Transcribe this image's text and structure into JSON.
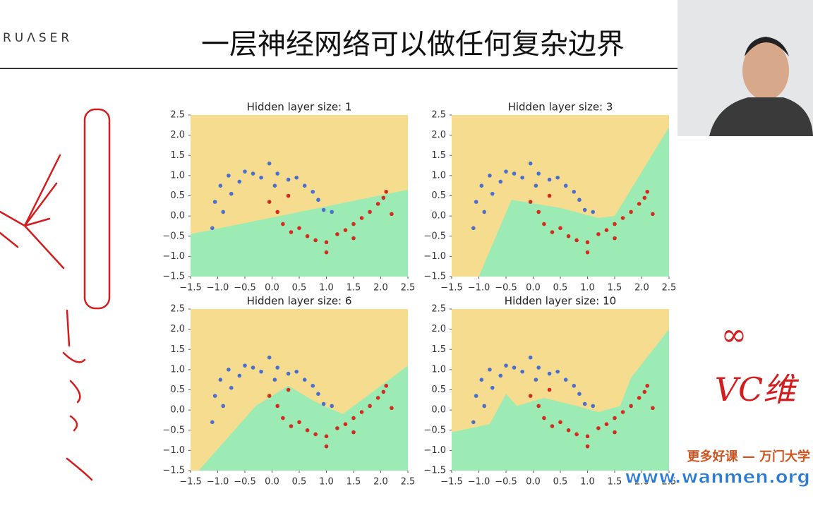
{
  "page": {
    "logo": "RUΛSER",
    "title": "一层神经网络可以做任何复杂边界",
    "note_1": "∞",
    "note_2": "VC维",
    "watermark_1": "更多好课 — 万门大学",
    "watermark_2": "www.wanmen.org"
  },
  "chart_data": [
    {
      "type": "scatter",
      "title": "Hidden layer size: 1",
      "xlim": [
        -1.5,
        2.5
      ],
      "ylim": [
        -1.5,
        2.5
      ],
      "xticks": [
        {
          "value": -1.5,
          "label": "−1.5"
        },
        {
          "value": -1.0,
          "label": "−1.0"
        },
        {
          "value": -0.5,
          "label": "−0.5"
        },
        {
          "value": 0,
          "label": "0.0"
        },
        0.5,
        {
          "value": 1,
          "label": "1.0"
        },
        1.5,
        {
          "value": 2,
          "label": "2.0"
        },
        2.5
      ],
      "yticks": [
        {
          "value": -1.5,
          "label": "−1.5"
        },
        {
          "value": -1.0,
          "label": "−1.0"
        },
        {
          "value": -0.5,
          "label": "−0.5"
        },
        {
          "value": 0,
          "label": "0.0"
        },
        0.5,
        {
          "value": 1,
          "label": "1.0"
        },
        1.5,
        {
          "value": 2,
          "label": "2.0"
        },
        2.5
      ],
      "background": "#f5dc8e",
      "region_color": "#9debb4",
      "boundary": {
        "x": [
          -1.5,
          2.5,
          2.5,
          -1.5
        ],
        "y": [
          -0.45,
          0.65,
          -1.5,
          -1.5
        ]
      },
      "series": [
        {
          "color": "#4a6fd0",
          "x": [
            -1.05,
            -0.95,
            -0.9,
            -0.8,
            -0.75,
            -0.6,
            -0.5,
            -0.35,
            -0.2,
            -0.05,
            0.1,
            0.3,
            0.45,
            0.6,
            0.75,
            0.85,
            0.95,
            1.1,
            -1.1,
            0.05
          ],
          "y": [
            0.35,
            0.75,
            0.1,
            1.0,
            0.55,
            0.85,
            1.1,
            1.05,
            0.95,
            1.3,
            1.05,
            0.9,
            0.95,
            0.75,
            0.6,
            0.4,
            0.15,
            0.1,
            -0.3,
            0.75
          ]
        },
        {
          "color": "#d42b1f",
          "x": [
            -0.05,
            0.1,
            0.2,
            0.35,
            0.5,
            0.65,
            0.8,
            1.0,
            1.0,
            1.2,
            1.35,
            1.5,
            1.65,
            1.8,
            1.95,
            2.05,
            2.1,
            2.2,
            0.3,
            1.5
          ],
          "y": [
            0.35,
            0.1,
            -0.2,
            -0.4,
            -0.3,
            -0.5,
            -0.6,
            -0.65,
            -0.9,
            -0.45,
            -0.35,
            -0.2,
            -0.05,
            0.1,
            0.3,
            0.45,
            0.6,
            0.05,
            0.5,
            -0.55
          ]
        }
      ]
    },
    {
      "type": "scatter",
      "title": "Hidden layer size: 3",
      "xlim": [
        -1.5,
        2.5
      ],
      "ylim": [
        -1.5,
        2.5
      ],
      "xticks": [
        {
          "value": -1.5,
          "label": "−1.5"
        },
        {
          "value": -1.0,
          "label": "−1.0"
        },
        {
          "value": -0.5,
          "label": "−0.5"
        },
        {
          "value": 0,
          "label": "0.0"
        },
        0.5,
        {
          "value": 1,
          "label": "1.0"
        },
        1.5,
        {
          "value": 2,
          "label": "2.0"
        },
        2.5
      ],
      "yticks": [
        {
          "value": -1.5,
          "label": "−1.5"
        },
        {
          "value": -1.0,
          "label": "−1.0"
        },
        {
          "value": -0.5,
          "label": "−0.5"
        },
        {
          "value": 0,
          "label": "0.0"
        },
        0.5,
        {
          "value": 1,
          "label": "1.0"
        },
        1.5,
        {
          "value": 2,
          "label": "2.0"
        },
        2.5
      ],
      "background": "#f5dc8e",
      "region_color": "#9debb4",
      "boundary": {
        "x": [
          -1.0,
          -0.4,
          0.5,
          1.2,
          1.5,
          2.5,
          2.5
        ],
        "y": [
          -1.5,
          0.4,
          0.2,
          -0.05,
          0.0,
          2.2,
          -1.5
        ]
      },
      "series": [
        {
          "color": "#4a6fd0",
          "x": [
            -1.05,
            -0.95,
            -0.9,
            -0.8,
            -0.75,
            -0.6,
            -0.5,
            -0.35,
            -0.2,
            -0.05,
            0.1,
            0.3,
            0.45,
            0.6,
            0.75,
            0.85,
            0.95,
            1.1,
            -1.1,
            0.05
          ],
          "y": [
            0.35,
            0.75,
            0.1,
            1.0,
            0.55,
            0.85,
            1.1,
            1.05,
            0.95,
            1.3,
            1.05,
            0.9,
            0.95,
            0.75,
            0.6,
            0.4,
            0.15,
            0.1,
            -0.3,
            0.75
          ]
        },
        {
          "color": "#d42b1f",
          "x": [
            -0.05,
            0.1,
            0.2,
            0.35,
            0.5,
            0.65,
            0.8,
            1.0,
            1.0,
            1.2,
            1.35,
            1.5,
            1.65,
            1.8,
            1.95,
            2.05,
            2.1,
            2.2,
            0.3,
            1.5
          ],
          "y": [
            0.35,
            0.1,
            -0.2,
            -0.4,
            -0.3,
            -0.5,
            -0.6,
            -0.65,
            -0.9,
            -0.45,
            -0.35,
            -0.2,
            -0.05,
            0.1,
            0.3,
            0.45,
            0.6,
            0.05,
            0.5,
            -0.55
          ]
        }
      ]
    },
    {
      "type": "scatter",
      "title": "Hidden layer size: 6",
      "xlim": [
        -1.5,
        2.5
      ],
      "ylim": [
        -1.5,
        2.5
      ],
      "xticks": [
        {
          "value": -1.5,
          "label": "−1.5"
        },
        {
          "value": -1.0,
          "label": "−1.0"
        },
        {
          "value": -0.5,
          "label": "−0.5"
        },
        {
          "value": 0,
          "label": "0.0"
        },
        0.5,
        {
          "value": 1,
          "label": "1.0"
        },
        1.5,
        {
          "value": 2,
          "label": "2.0"
        },
        2.5
      ],
      "yticks": [
        {
          "value": -1.5,
          "label": "−1.5"
        },
        {
          "value": -1.0,
          "label": "−1.0"
        },
        {
          "value": -0.5,
          "label": "−0.5"
        },
        {
          "value": 0,
          "label": "0.0"
        },
        0.5,
        {
          "value": 1,
          "label": "1.0"
        },
        1.5,
        {
          "value": 2,
          "label": "2.0"
        },
        2.5
      ],
      "background": "#f5dc8e",
      "region_color": "#9debb4",
      "boundary": {
        "x": [
          -1.35,
          -0.3,
          0.3,
          0.8,
          1.3,
          2.5,
          2.5
        ],
        "y": [
          -1.5,
          0.1,
          0.6,
          0.2,
          -0.1,
          1.1,
          -1.5
        ]
      },
      "series": [
        {
          "color": "#4a6fd0",
          "x": [
            -1.05,
            -0.95,
            -0.9,
            -0.8,
            -0.75,
            -0.6,
            -0.5,
            -0.35,
            -0.2,
            -0.05,
            0.1,
            0.3,
            0.45,
            0.6,
            0.75,
            0.85,
            0.95,
            1.1,
            -1.1,
            0.05
          ],
          "y": [
            0.35,
            0.75,
            0.1,
            1.0,
            0.55,
            0.85,
            1.1,
            1.05,
            0.95,
            1.3,
            1.05,
            0.9,
            0.95,
            0.75,
            0.6,
            0.4,
            0.15,
            0.1,
            -0.3,
            0.75
          ]
        },
        {
          "color": "#d42b1f",
          "x": [
            -0.05,
            0.1,
            0.2,
            0.35,
            0.5,
            0.65,
            0.8,
            1.0,
            1.0,
            1.2,
            1.35,
            1.5,
            1.65,
            1.8,
            1.95,
            2.05,
            2.1,
            2.2,
            0.3,
            1.5
          ],
          "y": [
            0.35,
            0.1,
            -0.2,
            -0.4,
            -0.3,
            -0.5,
            -0.6,
            -0.65,
            -0.9,
            -0.45,
            -0.35,
            -0.2,
            -0.05,
            0.1,
            0.3,
            0.45,
            0.6,
            0.05,
            0.5,
            -0.55
          ]
        }
      ]
    },
    {
      "type": "scatter",
      "title": "Hidden layer size: 10",
      "xlim": [
        -1.5,
        2.5
      ],
      "ylim": [
        -1.5,
        2.5
      ],
      "xticks": [
        {
          "value": -1.5,
          "label": "−1.5"
        },
        {
          "value": -1.0,
          "label": "−1.0"
        },
        {
          "value": -0.5,
          "label": "−0.5"
        },
        {
          "value": 0,
          "label": "0.0"
        },
        0.5,
        {
          "value": 1,
          "label": "1.0"
        },
        1.5,
        {
          "value": 2,
          "label": "2.0"
        },
        2.5
      ],
      "yticks": [
        {
          "value": -1.5,
          "label": "−1.5"
        },
        {
          "value": -1.0,
          "label": "−1.0"
        },
        {
          "value": -0.5,
          "label": "−0.5"
        },
        {
          "value": 0,
          "label": "0.0"
        },
        0.5,
        {
          "value": 1,
          "label": "1.0"
        },
        1.5,
        {
          "value": 2,
          "label": "2.0"
        },
        2.5
      ],
      "background": "#f5dc8e",
      "region_color": "#9debb4",
      "boundary": {
        "x": [
          -1.5,
          -0.8,
          -0.5,
          -0.3,
          0.2,
          0.8,
          1.2,
          1.6,
          1.8,
          2.5,
          2.5,
          -1.5
        ],
        "y": [
          -0.55,
          -0.35,
          0.4,
          0.1,
          0.3,
          0.1,
          -0.05,
          0.1,
          0.8,
          2.0,
          -1.5,
          -1.5
        ]
      },
      "series": [
        {
          "color": "#4a6fd0",
          "x": [
            -1.05,
            -0.95,
            -0.9,
            -0.8,
            -0.75,
            -0.6,
            -0.5,
            -0.35,
            -0.2,
            -0.05,
            0.1,
            0.3,
            0.45,
            0.6,
            0.75,
            0.85,
            0.95,
            1.1,
            -1.1,
            0.05
          ],
          "y": [
            0.35,
            0.75,
            0.1,
            1.0,
            0.55,
            0.85,
            1.1,
            1.05,
            0.95,
            1.3,
            1.05,
            0.9,
            0.95,
            0.75,
            0.6,
            0.4,
            0.15,
            0.1,
            -0.3,
            0.75
          ]
        },
        {
          "color": "#d42b1f",
          "x": [
            -0.05,
            0.1,
            0.2,
            0.35,
            0.5,
            0.65,
            0.8,
            1.0,
            1.0,
            1.2,
            1.35,
            1.5,
            1.65,
            1.8,
            1.95,
            2.05,
            2.1,
            2.2,
            0.3,
            1.5
          ],
          "y": [
            0.35,
            0.1,
            -0.2,
            -0.4,
            -0.3,
            -0.5,
            -0.6,
            -0.65,
            -0.9,
            -0.45,
            -0.35,
            -0.2,
            -0.05,
            0.1,
            0.3,
            0.45,
            0.6,
            0.05,
            0.5,
            -0.55
          ]
        }
      ]
    }
  ]
}
